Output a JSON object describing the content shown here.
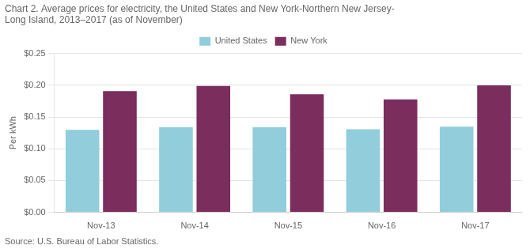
{
  "chart_data": {
    "type": "bar",
    "title": [
      "Chart 2. Average prices for electricity, the United States and New York-Northern New Jersey-",
      "Long Island, 2013–2017 (as of November)"
    ],
    "y_label": "Per kWh",
    "source": "Source: U.S. Bureau of Labor Statistics.",
    "categories": [
      "Nov-13",
      "Nov-14",
      "Nov-15",
      "Nov-16",
      "Nov-17"
    ],
    "series": [
      {
        "name": "United States",
        "color": "#92CDDC",
        "values": [
          0.13,
          0.134,
          0.134,
          0.131,
          0.135
        ]
      },
      {
        "name": "New York",
        "color": "#7B2D5E",
        "values": [
          0.191,
          0.199,
          0.186,
          0.178,
          0.2
        ]
      }
    ],
    "ylim": [
      0.0,
      0.25
    ],
    "yticks": [
      {
        "value": 0.0,
        "label": "$0.00"
      },
      {
        "value": 0.05,
        "label": "$0.05"
      },
      {
        "value": 0.1,
        "label": "$0.10"
      },
      {
        "value": 0.15,
        "label": "$0.15"
      },
      {
        "value": 0.2,
        "label": "$0.20"
      },
      {
        "value": 0.25,
        "label": "$0.25"
      }
    ],
    "grid": true,
    "legend": "top"
  }
}
